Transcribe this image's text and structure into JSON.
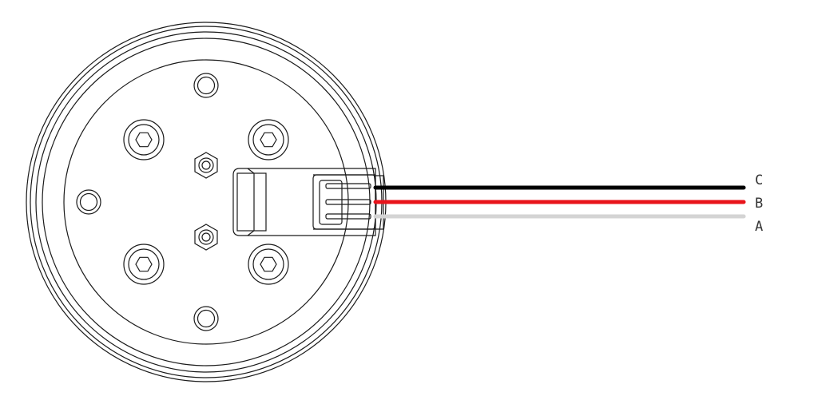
{
  "wires": [
    {
      "label": "C",
      "color": "#000000"
    },
    {
      "label": "B",
      "color": "#e8141b"
    },
    {
      "label": "A",
      "color": "#d4d4d4"
    }
  ],
  "colors": {
    "line": "#1a1a1a",
    "background": "#ffffff"
  }
}
